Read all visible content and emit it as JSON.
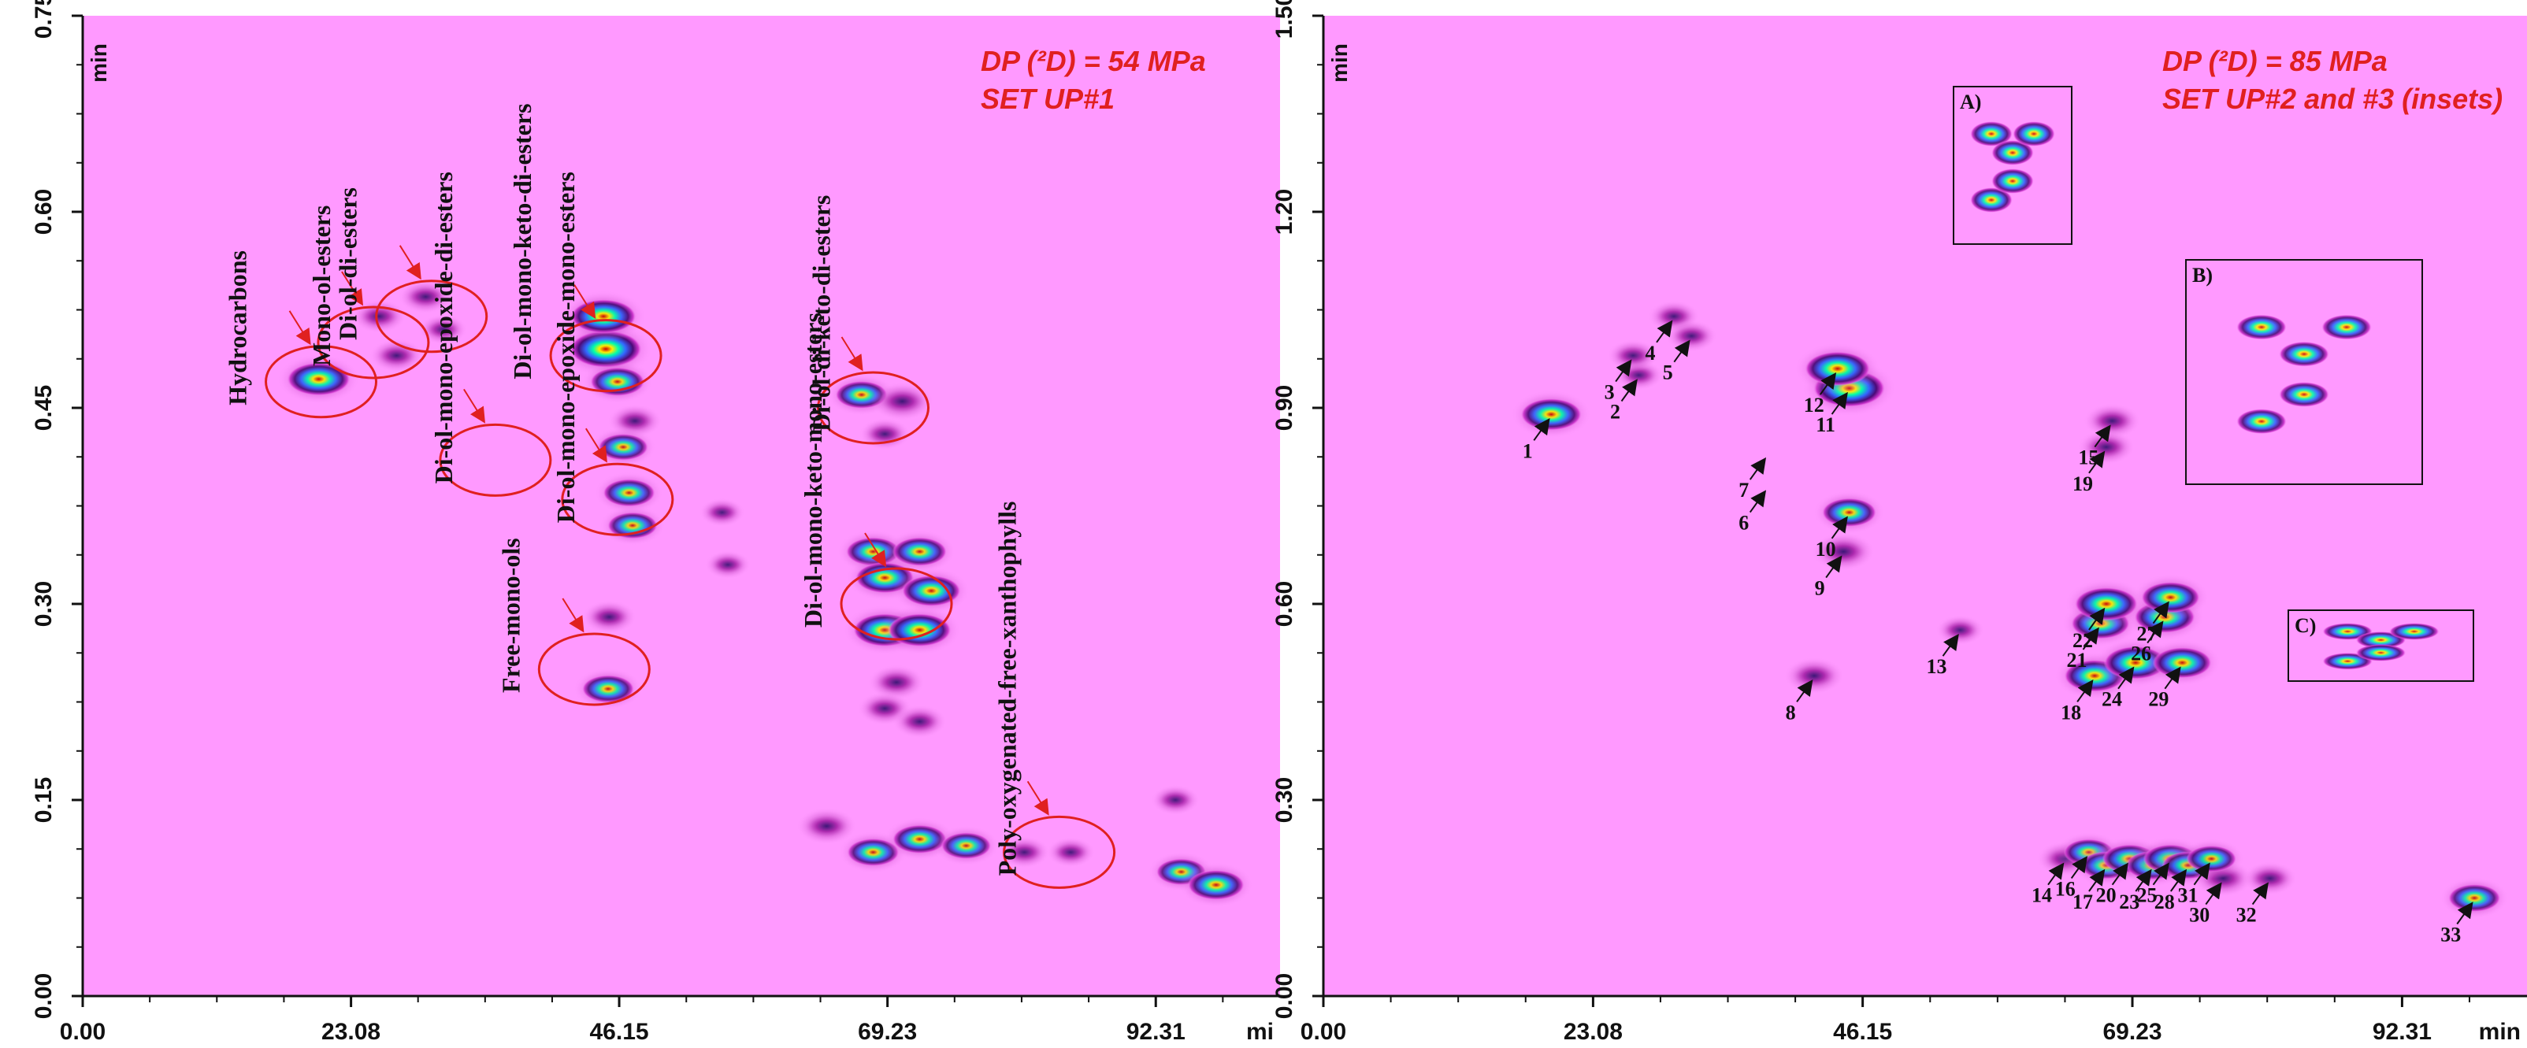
{
  "chart_data": [
    {
      "type": "heatmap",
      "title": "DP (²D) = 54 MPa",
      "subtitle": "SET UP#1",
      "title_color": "#e02020",
      "xlabel": "mi",
      "ylabel": "min",
      "xlim": [
        0,
        103
      ],
      "ylim": [
        0,
        0.75
      ],
      "x_ticks": [
        "0.00",
        "23.08",
        "46.15",
        "69.23",
        "92.31"
      ],
      "y_ticks": [
        "0.00",
        "0.15",
        "0.30",
        "0.45",
        "0.60",
        "0.75"
      ],
      "background": "#ff99ff",
      "colors": {
        "low": "#cc33cc",
        "mid": "#3366ff",
        "high": "#00ffaa",
        "peak": "#ffee00",
        "max": "#cc0000"
      },
      "annotation_color": "#e02020",
      "groups": [
        {
          "label": "Hydrocarbons",
          "x": 20.5,
          "y": 0.47
        },
        {
          "label": "Mono-ol-esters",
          "x": 25.0,
          "y": 0.5
        },
        {
          "label": "Di-ol-di-esters",
          "x": 30.0,
          "y": 0.52
        },
        {
          "label": "Di-ol-mono-epoxide-di-esters",
          "x": 35.5,
          "y": 0.41
        },
        {
          "label": "Di-ol-mono-keto-di-esters",
          "x": 45.0,
          "y": 0.49
        },
        {
          "label": "Di-ol-mono-epoxide-mono-esters",
          "x": 46.0,
          "y": 0.38
        },
        {
          "label": "Free-mono-ols",
          "x": 44.0,
          "y": 0.25
        },
        {
          "label": "Di-ol-di-keto-di-esters",
          "x": 68.0,
          "y": 0.45
        },
        {
          "label": "Di-ol-mono-keto-mono-esters",
          "x": 70.0,
          "y": 0.3
        },
        {
          "label": "Poly-oxygenated-free-xanthophylls",
          "x": 84.0,
          "y": 0.11
        }
      ],
      "peaks": [
        {
          "x": 20.3,
          "y": 0.472,
          "intensity": 0.8
        },
        {
          "x": 25.5,
          "y": 0.52,
          "intensity": 0.3
        },
        {
          "x": 27.0,
          "y": 0.49,
          "intensity": 0.3
        },
        {
          "x": 29.5,
          "y": 0.535,
          "intensity": 0.3
        },
        {
          "x": 31.0,
          "y": 0.51,
          "intensity": 0.2
        },
        {
          "x": 45.0,
          "y": 0.495,
          "intensity": 1.0
        },
        {
          "x": 44.8,
          "y": 0.52,
          "intensity": 0.85
        },
        {
          "x": 46.0,
          "y": 0.47,
          "intensity": 0.6
        },
        {
          "x": 47.5,
          "y": 0.44,
          "intensity": 0.3
        },
        {
          "x": 46.5,
          "y": 0.42,
          "intensity": 0.5
        },
        {
          "x": 47.0,
          "y": 0.385,
          "intensity": 0.55
        },
        {
          "x": 47.3,
          "y": 0.36,
          "intensity": 0.5
        },
        {
          "x": 45.3,
          "y": 0.29,
          "intensity": 0.3
        },
        {
          "x": 45.2,
          "y": 0.235,
          "intensity": 0.55
        },
        {
          "x": 55.0,
          "y": 0.37,
          "intensity": 0.15
        },
        {
          "x": 55.5,
          "y": 0.33,
          "intensity": 0.15
        },
        {
          "x": 67.0,
          "y": 0.46,
          "intensity": 0.55
        },
        {
          "x": 70.5,
          "y": 0.455,
          "intensity": 0.45
        },
        {
          "x": 69.0,
          "y": 0.43,
          "intensity": 0.25
        },
        {
          "x": 68.0,
          "y": 0.34,
          "intensity": 0.6
        },
        {
          "x": 72.0,
          "y": 0.34,
          "intensity": 0.6
        },
        {
          "x": 69.0,
          "y": 0.32,
          "intensity": 0.7
        },
        {
          "x": 73.0,
          "y": 0.31,
          "intensity": 0.7
        },
        {
          "x": 69.0,
          "y": 0.28,
          "intensity": 0.8
        },
        {
          "x": 72.0,
          "y": 0.28,
          "intensity": 0.8
        },
        {
          "x": 70.0,
          "y": 0.24,
          "intensity": 0.35
        },
        {
          "x": 69.0,
          "y": 0.22,
          "intensity": 0.3
        },
        {
          "x": 72.0,
          "y": 0.21,
          "intensity": 0.3
        },
        {
          "x": 64.0,
          "y": 0.13,
          "intensity": 0.4
        },
        {
          "x": 68.0,
          "y": 0.11,
          "intensity": 0.55
        },
        {
          "x": 72.0,
          "y": 0.12,
          "intensity": 0.6
        },
        {
          "x": 76.0,
          "y": 0.115,
          "intensity": 0.5
        },
        {
          "x": 81.0,
          "y": 0.11,
          "intensity": 0.25
        },
        {
          "x": 85.0,
          "y": 0.11,
          "intensity": 0.2
        },
        {
          "x": 94.5,
          "y": 0.095,
          "intensity": 0.5
        },
        {
          "x": 97.5,
          "y": 0.085,
          "intensity": 0.65
        },
        {
          "x": 94.0,
          "y": 0.15,
          "intensity": 0.2
        }
      ]
    },
    {
      "type": "heatmap",
      "title": "DP (²D) = 85 MPa",
      "subtitle": "SET UP#2 and #3 (insets)",
      "title_color": "#e02020",
      "xlabel": "min",
      "ylabel": "min",
      "xlim": [
        0,
        103
      ],
      "ylim": [
        0,
        1.5
      ],
      "x_ticks": [
        "0.00",
        "23.08",
        "46.15",
        "69.23",
        "92.31"
      ],
      "y_ticks": [
        "0.00",
        "0.30",
        "0.60",
        "0.90",
        "1.20",
        "1.50"
      ],
      "background": "#ff99ff",
      "peak_labels": [
        {
          "label": "1",
          "x": 19.5,
          "y": 0.89,
          "intensity": 0.75
        },
        {
          "label": "2",
          "x": 27.0,
          "y": 0.95,
          "intensity": 0.2
        },
        {
          "label": "3",
          "x": 26.5,
          "y": 0.98,
          "intensity": 0.25
        },
        {
          "label": "4",
          "x": 30.0,
          "y": 1.04,
          "intensity": 0.25
        },
        {
          "label": "5",
          "x": 31.5,
          "y": 1.01,
          "intensity": 0.25
        },
        {
          "label": "6",
          "x": 38.0,
          "y": 0.78,
          "intensity": 0.0
        },
        {
          "label": "7",
          "x": 38.0,
          "y": 0.83,
          "intensity": 0.0
        },
        {
          "label": "8",
          "x": 42.0,
          "y": 0.49,
          "intensity": 0.4
        },
        {
          "label": "9",
          "x": 44.5,
          "y": 0.68,
          "intensity": 0.45
        },
        {
          "label": "10",
          "x": 45.0,
          "y": 0.74,
          "intensity": 0.6
        },
        {
          "label": "11",
          "x": 45.0,
          "y": 0.93,
          "intensity": 1.0
        },
        {
          "label": "12",
          "x": 44.0,
          "y": 0.96,
          "intensity": 0.85
        },
        {
          "label": "13",
          "x": 54.5,
          "y": 0.56,
          "intensity": 0.2
        },
        {
          "label": "14",
          "x": 63.5,
          "y": 0.21,
          "intensity": 0.35
        },
        {
          "label": "15",
          "x": 67.5,
          "y": 0.88,
          "intensity": 0.35
        },
        {
          "label": "16",
          "x": 65.5,
          "y": 0.22,
          "intensity": 0.5
        },
        {
          "label": "17",
          "x": 67.0,
          "y": 0.2,
          "intensity": 0.55
        },
        {
          "label": "18",
          "x": 66.0,
          "y": 0.49,
          "intensity": 0.75
        },
        {
          "label": "19",
          "x": 67.0,
          "y": 0.84,
          "intensity": 0.35
        },
        {
          "label": "20",
          "x": 69.0,
          "y": 0.21,
          "intensity": 0.6
        },
        {
          "label": "21",
          "x": 66.5,
          "y": 0.57,
          "intensity": 0.7
        },
        {
          "label": "22",
          "x": 67.0,
          "y": 0.6,
          "intensity": 0.8
        },
        {
          "label": "23",
          "x": 71.0,
          "y": 0.2,
          "intensity": 0.6
        },
        {
          "label": "24",
          "x": 69.5,
          "y": 0.51,
          "intensity": 0.8
        },
        {
          "label": "25",
          "x": 72.5,
          "y": 0.21,
          "intensity": 0.6
        },
        {
          "label": "26",
          "x": 72.0,
          "y": 0.58,
          "intensity": 0.75
        },
        {
          "label": "27",
          "x": 72.5,
          "y": 0.61,
          "intensity": 0.7
        },
        {
          "label": "28",
          "x": 74.0,
          "y": 0.2,
          "intensity": 0.55
        },
        {
          "label": "29",
          "x": 73.5,
          "y": 0.51,
          "intensity": 0.7
        },
        {
          "label": "30",
          "x": 77.0,
          "y": 0.18,
          "intensity": 0.4
        },
        {
          "label": "31",
          "x": 76.0,
          "y": 0.21,
          "intensity": 0.5
        },
        {
          "label": "32",
          "x": 81.0,
          "y": 0.18,
          "intensity": 0.3
        },
        {
          "label": "33",
          "x": 98.5,
          "y": 0.15,
          "intensity": 0.55
        }
      ],
      "insets": [
        {
          "label": "A)"
        },
        {
          "label": "B)"
        },
        {
          "label": "C)"
        }
      ]
    }
  ]
}
